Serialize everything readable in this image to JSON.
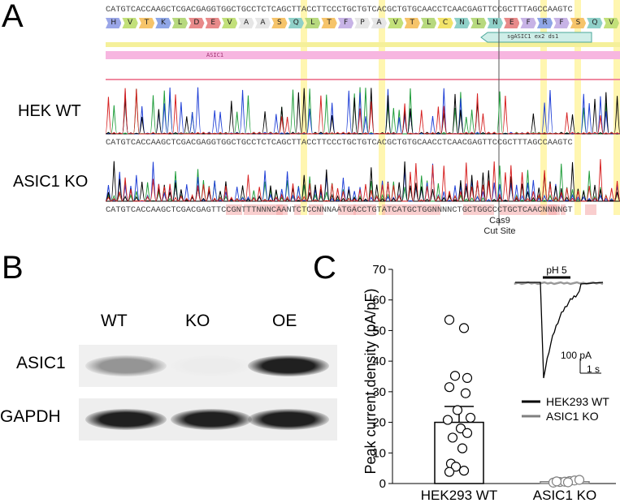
{
  "panels": {
    "a": "A",
    "b": "B",
    "c": "C"
  },
  "panel_a": {
    "ref_sequence": "CATGTCACCAAGCTCGACGAGGTGGCTGCCTCTCAGCTTACCTTCCCTGCTGTCACGCTGTGCAACCTCAACGAGTTCCGCTTTAGCCAAGTC",
    "amino_acids": [
      "H",
      "V",
      "T",
      "K",
      "L",
      "D",
      "E",
      "V",
      "A",
      "A",
      "S",
      "Q",
      "L",
      "T",
      "F",
      "P",
      "A",
      "V",
      "T",
      "L",
      "C",
      "N",
      "L",
      "N",
      "E",
      "F",
      "R",
      "F",
      "S",
      "Q",
      "V"
    ],
    "amino_colors": [
      "#9aa6e8",
      "#c2e07a",
      "#f6c46a",
      "#8fa6e6",
      "#b7d97e",
      "#e88a8a",
      "#e88a8a",
      "#c2e07a",
      "#e6e6e6",
      "#e6e6e6",
      "#f6c46a",
      "#8fd0c8",
      "#b7d97e",
      "#f6c46a",
      "#c7b3e6",
      "#e6e6e6",
      "#e6e6e6",
      "#c2e07a",
      "#f6c46a",
      "#b7d97e",
      "#f2e36a",
      "#8fd0c8",
      "#b7d97e",
      "#8fd0c8",
      "#e88a8a",
      "#c7b3e6",
      "#8fa6e6",
      "#c7b3e6",
      "#f6c46a",
      "#8fd0c8",
      "#c2e07a"
    ],
    "guide_label": "sgASIC1 ex2 ds1",
    "gene_label": "ASIC1",
    "track_wt_label": "HEK WT",
    "track_ko_label": "ASIC1 KO",
    "wt_sequence": "CATGTCACCAAGCTCGACGAGGTGGCTGCCTCTCAGCTTACCTTCCCTGCTGTCACGCTGTGCAACCTCAACGAGTTCCGCTTTAGCCAAGTC",
    "ko_sequence": "CATGTCACCAAGCTCGACGAGTTCCGNTTTNNNCAANTCTCCNNNAATGACCTGTATCATGCTGGNNNNCTGCTGGCCCTGCTCAACNNNNGT",
    "cut_site_label_1": "Cas9",
    "cut_site_label_2": "Cut Site"
  },
  "panel_b": {
    "lanes": [
      "WT",
      "KO",
      "OE"
    ],
    "rows": [
      "ASIC1",
      "GAPDH"
    ],
    "asic1_band_intensity": [
      0.45,
      0.08,
      0.95
    ],
    "gapdh_band_intensity": [
      0.95,
      0.95,
      0.95
    ]
  },
  "chart_data": {
    "type": "bar",
    "categories": [
      "HEK293 WT",
      "ASIC1 KO"
    ],
    "values": [
      20.0,
      0.6
    ],
    "error": [
      5.2,
      0.3
    ],
    "ylabel": "Peak current density (pA/pF)",
    "ylim": [
      0,
      70
    ],
    "yticks": [
      0,
      10,
      20,
      30,
      40,
      50,
      60,
      70
    ],
    "points": [
      {
        "group": "HEK293 WT",
        "values": [
          53.5,
          50.8,
          35.2,
          34.5,
          31.5,
          29.5,
          24.0,
          21.5,
          20.8,
          18.0,
          16.5,
          15.0,
          11.5,
          6.5,
          5.5,
          4.2,
          3.8
        ]
      },
      {
        "group": "ASIC1 KO",
        "values": [
          0.3,
          0.5,
          0.6,
          0.8,
          1.0,
          1.2,
          0.7,
          0.4
        ]
      }
    ],
    "colors": {
      "HEK293 WT": "#000000",
      "ASIC1 KO": "#808080"
    },
    "legend": [
      {
        "label": "HEK293 WT",
        "color": "#000000"
      },
      {
        "label": "ASIC1 KO",
        "color": "#808080"
      }
    ],
    "legend_position": "right",
    "inset": {
      "stimulus_label": "pH 5",
      "scale_current": "100 pA",
      "scale_time": "1 s"
    }
  }
}
